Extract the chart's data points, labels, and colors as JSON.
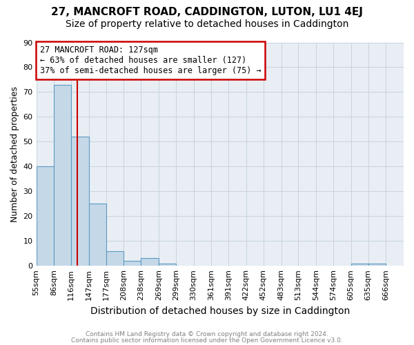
{
  "title1": "27, MANCROFT ROAD, CADDINGTON, LUTON, LU1 4EJ",
  "title2": "Size of property relative to detached houses in Caddington",
  "xlabel": "Distribution of detached houses by size in Caddington",
  "ylabel": "Number of detached properties",
  "footnote1": "Contains HM Land Registry data © Crown copyright and database right 2024.",
  "footnote2": "Contains public sector information licensed under the Open Government Licence v3.0.",
  "bar_edges": [
    55,
    86,
    116,
    147,
    177,
    208,
    238,
    269,
    299,
    330,
    361,
    391,
    422,
    452,
    483,
    513,
    544,
    574,
    605,
    635,
    666
  ],
  "bar_heights": [
    40,
    73,
    52,
    25,
    6,
    2,
    3,
    1,
    0,
    0,
    0,
    0,
    0,
    0,
    0,
    0,
    0,
    0,
    1,
    1
  ],
  "bar_color": "#c5d8e8",
  "bar_edge_color": "#5a9abf",
  "grid_color": "#c8d4de",
  "vline_x": 127,
  "vline_color": "#cc0000",
  "annotation_text": "27 MANCROFT ROAD: 127sqm\n← 63% of detached houses are smaller (127)\n37% of semi-detached houses are larger (75) →",
  "annotation_box_color": "#cc0000",
  "ylim": [
    0,
    90
  ],
  "yticks": [
    0,
    10,
    20,
    30,
    40,
    50,
    60,
    70,
    80,
    90
  ],
  "background_color": "#e8eef4",
  "title1_fontsize": 11,
  "title2_fontsize": 10,
  "xlabel_fontsize": 10,
  "ylabel_fontsize": 9,
  "tick_fontsize": 8,
  "annotation_fontsize": 8.5
}
